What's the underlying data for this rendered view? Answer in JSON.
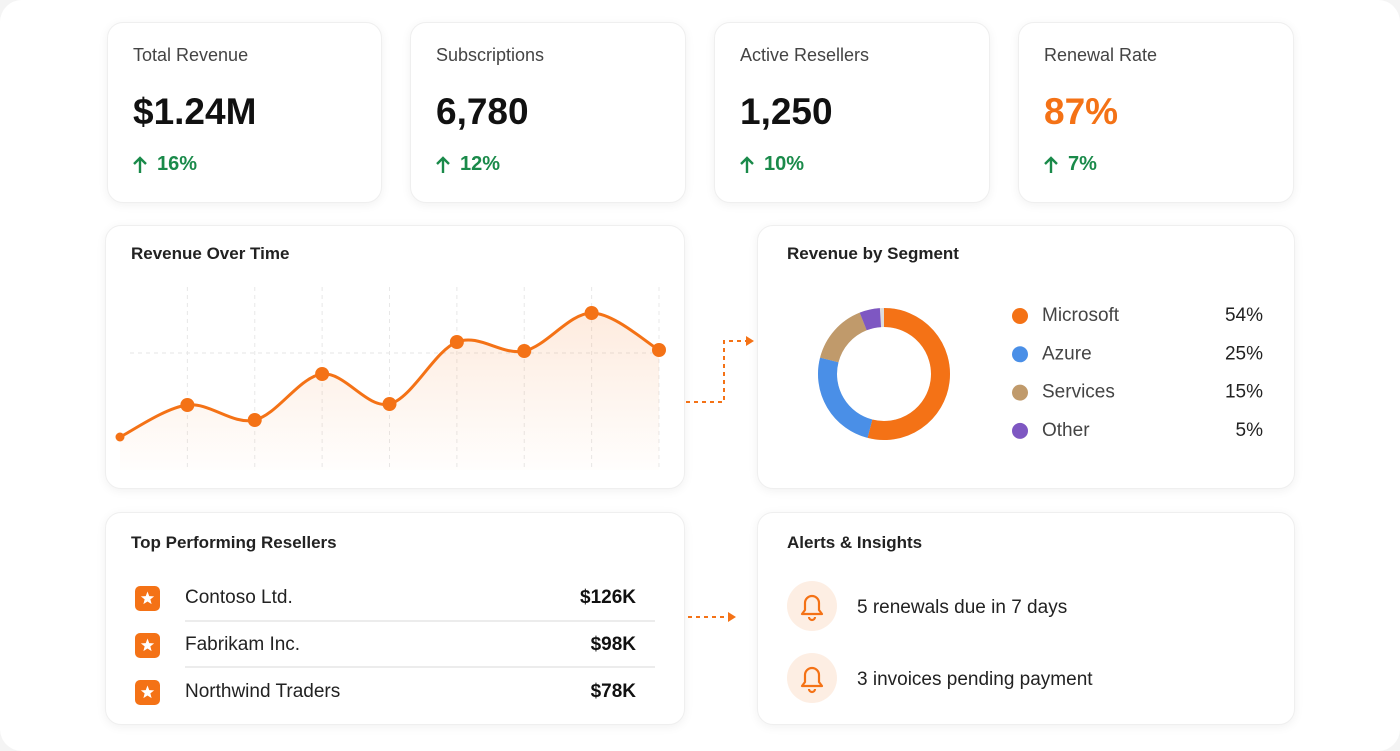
{
  "kpis": [
    {
      "label": "Total Revenue",
      "value": "$1.24M",
      "change": "16%"
    },
    {
      "label": "Subscriptions",
      "value": "6,780",
      "change": "12%"
    },
    {
      "label": "Active Resellers",
      "value": "1,250",
      "change": "10%"
    },
    {
      "label": "Renewal Rate",
      "value": "87%",
      "change": "7%"
    }
  ],
  "chart_data": [
    {
      "type": "line",
      "title": "Revenue Over Time",
      "categories": [
        null,
        null,
        null,
        null,
        null,
        null,
        null,
        null,
        null
      ],
      "values": [
        43,
        75,
        60,
        106,
        76,
        138,
        129,
        167,
        130
      ],
      "color": "#f47216"
    },
    {
      "type": "pie",
      "title": "Revenue by Segment",
      "categories": [
        "Microsoft",
        "Azure",
        "Services",
        "Other"
      ],
      "values": [
        54,
        25,
        15,
        5
      ],
      "value_labels": [
        "54%",
        "25%",
        "15%",
        "5%"
      ],
      "colors": [
        "#f47216",
        "#4a8fe7",
        "#c09a6b",
        "#7e57c2"
      ]
    }
  ],
  "resellers": {
    "title": "Top Performing Resellers",
    "rows": [
      [
        "Contoso Ltd.",
        "$126K"
      ],
      [
        "Fabrikam Inc.",
        "$98K"
      ],
      [
        "Northwind Traders",
        "$78K"
      ]
    ]
  },
  "alerts": {
    "title": "Alerts & Insights",
    "items": [
      "5 renewals due in 7 days",
      "3 invoices pending payment"
    ]
  }
}
